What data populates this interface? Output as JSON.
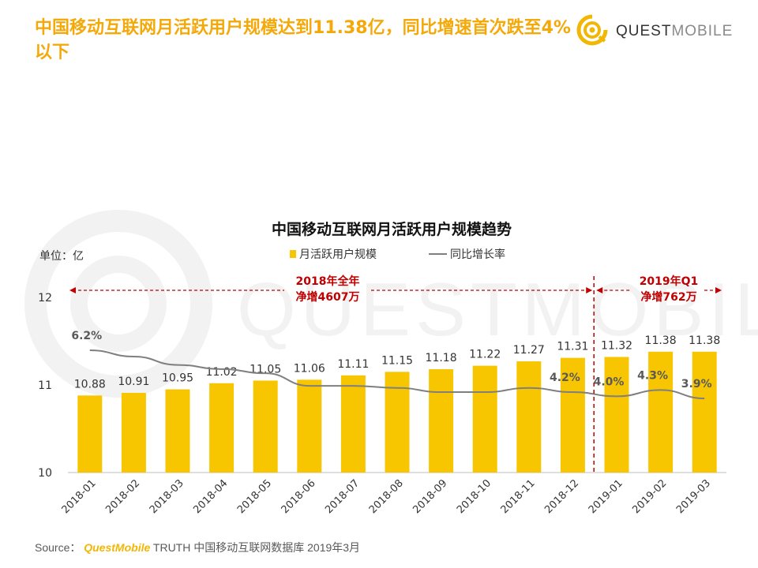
{
  "headline": "中国移动互联网月活跃用户规模达到11.38亿，同比增速首次跌至4%以下",
  "logo": {
    "brand_bold": "QUEST",
    "brand_thin": "MOBILE",
    "icon": "questmobile-logo-icon"
  },
  "watermark": "QUESTMOBILE",
  "colors": {
    "accent": "#f4a90a",
    "bar": "#f7c600",
    "line": "#7f7f7f",
    "annotation": "#c00000"
  },
  "source": {
    "prefix": "Source：",
    "brand": "QuestMobile",
    "rest": "TRUTH 中国移动互联网数据库 2019年3月"
  },
  "chart_data": {
    "type": "bar",
    "title": "中国移动互联网月活跃用户规模趋势",
    "unit_label": "单位：亿",
    "categories": [
      "2018-01",
      "2018-02",
      "2018-03",
      "2018-04",
      "2018-05",
      "2018-06",
      "2018-07",
      "2018-08",
      "2018-09",
      "2018-10",
      "2018-11",
      "2018-12",
      "2019-01",
      "2019-02",
      "2019-03"
    ],
    "ylim": [
      10,
      12
    ],
    "yticks": [
      "10",
      "11",
      "12"
    ],
    "legend_location": "top-center",
    "series": [
      {
        "name": "月活跃用户规模",
        "kind": "bar",
        "values": [
          10.88,
          10.91,
          10.95,
          11.02,
          11.05,
          11.06,
          11.11,
          11.15,
          11.18,
          11.22,
          11.27,
          11.31,
          11.32,
          11.38,
          11.38
        ],
        "labels": [
          "10.88",
          "10.91",
          "10.95",
          "11.02",
          "11.05",
          "11.06",
          "11.11",
          "11.15",
          "11.18",
          "11.22",
          "11.27",
          "11.31",
          "11.32",
          "11.38",
          "11.38"
        ]
      },
      {
        "name": "同比增长率",
        "kind": "line",
        "values": [
          6.2,
          5.9,
          5.5,
          5.3,
          5.1,
          4.5,
          4.5,
          4.4,
          4.2,
          4.2,
          4.4,
          4.2,
          4.0,
          4.3,
          3.9
        ],
        "labeled_points": [
          {
            "index": 0,
            "text": "6.2%"
          },
          {
            "index": 11,
            "text": "4.2%"
          },
          {
            "index": 12,
            "text": "4.0%"
          },
          {
            "index": 13,
            "text": "4.3%"
          },
          {
            "index": 14,
            "text": "3.9%"
          }
        ]
      }
    ],
    "annotations": [
      {
        "text_line1": "2018年全年",
        "text_line2": "净增4607万",
        "span": [
          "2018-01",
          "2018-12"
        ]
      },
      {
        "text_line1": "2019年Q1",
        "text_line2": "净增762万",
        "span": [
          "2019-01",
          "2019-03"
        ]
      }
    ]
  }
}
